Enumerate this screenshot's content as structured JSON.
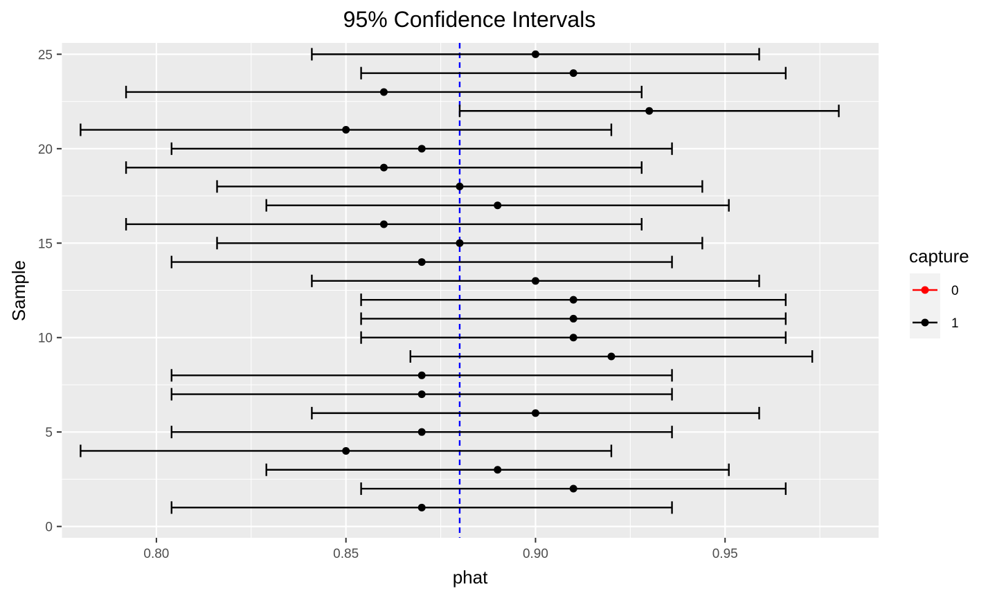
{
  "chart_data": {
    "type": "errorbar",
    "title": "95% Confidence Intervals",
    "xlabel": "phat",
    "ylabel": "Sample",
    "xlim": [
      0.775,
      0.9905
    ],
    "ylim": [
      -0.6,
      25.6
    ],
    "x_ticks": [
      0.8,
      0.85,
      0.9,
      0.95
    ],
    "x_tick_labels": [
      "0.80",
      "0.85",
      "0.90",
      "0.95"
    ],
    "y_ticks": [
      0,
      5,
      10,
      15,
      20,
      25
    ],
    "y_tick_labels": [
      "0",
      "5",
      "10",
      "15",
      "20",
      "25"
    ],
    "reference_line": {
      "x": 0.88,
      "color": "#0000ff",
      "style": "dashed"
    },
    "legend": {
      "title": "capture",
      "entries": [
        {
          "label": "0",
          "color": "#ff0000"
        },
        {
          "label": "1",
          "color": "#000000"
        }
      ]
    },
    "points": [
      {
        "sample": 1,
        "phat": 0.87,
        "lower": 0.804,
        "upper": 0.936,
        "capture": "1"
      },
      {
        "sample": 2,
        "phat": 0.91,
        "lower": 0.854,
        "upper": 0.966,
        "capture": "1"
      },
      {
        "sample": 3,
        "phat": 0.89,
        "lower": 0.829,
        "upper": 0.951,
        "capture": "1"
      },
      {
        "sample": 4,
        "phat": 0.85,
        "lower": 0.78,
        "upper": 0.92,
        "capture": "1"
      },
      {
        "sample": 5,
        "phat": 0.87,
        "lower": 0.804,
        "upper": 0.936,
        "capture": "1"
      },
      {
        "sample": 6,
        "phat": 0.9,
        "lower": 0.841,
        "upper": 0.959,
        "capture": "1"
      },
      {
        "sample": 7,
        "phat": 0.87,
        "lower": 0.804,
        "upper": 0.936,
        "capture": "1"
      },
      {
        "sample": 8,
        "phat": 0.87,
        "lower": 0.804,
        "upper": 0.936,
        "capture": "1"
      },
      {
        "sample": 9,
        "phat": 0.92,
        "lower": 0.867,
        "upper": 0.973,
        "capture": "1"
      },
      {
        "sample": 10,
        "phat": 0.91,
        "lower": 0.854,
        "upper": 0.966,
        "capture": "1"
      },
      {
        "sample": 11,
        "phat": 0.91,
        "lower": 0.854,
        "upper": 0.966,
        "capture": "1"
      },
      {
        "sample": 12,
        "phat": 0.91,
        "lower": 0.854,
        "upper": 0.966,
        "capture": "1"
      },
      {
        "sample": 13,
        "phat": 0.9,
        "lower": 0.841,
        "upper": 0.959,
        "capture": "1"
      },
      {
        "sample": 14,
        "phat": 0.87,
        "lower": 0.804,
        "upper": 0.936,
        "capture": "1"
      },
      {
        "sample": 15,
        "phat": 0.88,
        "lower": 0.816,
        "upper": 0.944,
        "capture": "1"
      },
      {
        "sample": 16,
        "phat": 0.86,
        "lower": 0.792,
        "upper": 0.928,
        "capture": "1"
      },
      {
        "sample": 17,
        "phat": 0.89,
        "lower": 0.829,
        "upper": 0.951,
        "capture": "1"
      },
      {
        "sample": 18,
        "phat": 0.88,
        "lower": 0.816,
        "upper": 0.944,
        "capture": "1"
      },
      {
        "sample": 19,
        "phat": 0.86,
        "lower": 0.792,
        "upper": 0.928,
        "capture": "1"
      },
      {
        "sample": 20,
        "phat": 0.87,
        "lower": 0.804,
        "upper": 0.936,
        "capture": "1"
      },
      {
        "sample": 21,
        "phat": 0.85,
        "lower": 0.78,
        "upper": 0.92,
        "capture": "1"
      },
      {
        "sample": 22,
        "phat": 0.93,
        "lower": 0.88,
        "upper": 0.98,
        "capture": "1"
      },
      {
        "sample": 23,
        "phat": 0.86,
        "lower": 0.792,
        "upper": 0.928,
        "capture": "1"
      },
      {
        "sample": 24,
        "phat": 0.91,
        "lower": 0.854,
        "upper": 0.966,
        "capture": "1"
      },
      {
        "sample": 25,
        "phat": 0.9,
        "lower": 0.841,
        "upper": 0.959,
        "capture": "1"
      }
    ]
  }
}
